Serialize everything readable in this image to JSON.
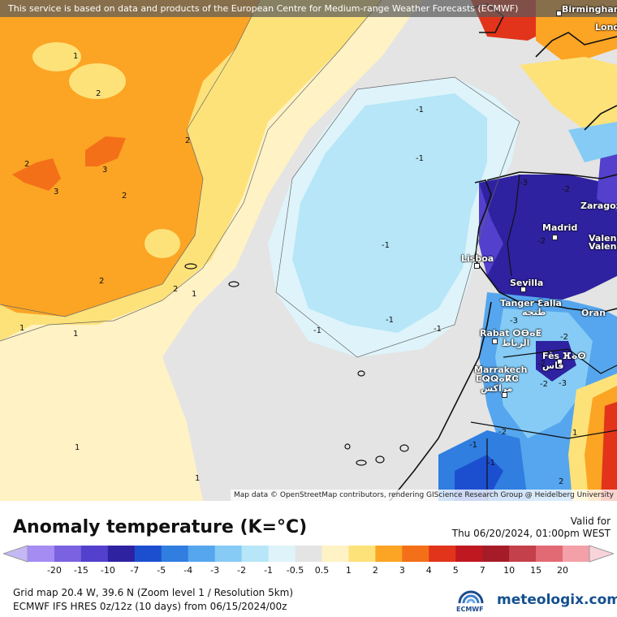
{
  "header": {
    "notice": "This service is based on data and products of the European Centre for Medium-range Weather Forecasts (ECMWF)"
  },
  "credit": "Map data © OpenStreetMap contributors, rendering GIScience Research Group @ Heidelberg University",
  "cities": [
    {
      "name": "Birmingham"
    },
    {
      "name": "Lond"
    },
    {
      "name": "Zaragoza"
    },
    {
      "name": "Madrid"
    },
    {
      "name": "Valenc"
    },
    {
      "name": "Valenc"
    },
    {
      "name": "Lisboa"
    },
    {
      "name": "Sevilla"
    },
    {
      "name": "Tanger Ɛalla"
    },
    {
      "name": "طنجة"
    },
    {
      "name": "Oran"
    },
    {
      "name": "Rabat ⵔⴱⴰⵟ"
    },
    {
      "name": "الرباط"
    },
    {
      "name": "Fès ⴼⴰⵙ"
    },
    {
      "name": "فاس"
    },
    {
      "name": "Marrakech"
    },
    {
      "name": "ⵎⵕⵕⴰⴽⵛ"
    },
    {
      "name": "مراكش"
    }
  ],
  "contour_labels": [
    "1",
    "2",
    "2",
    "2",
    "3",
    "3",
    "2",
    "2",
    "2",
    "1",
    "1",
    "1",
    "1",
    "1",
    "-1",
    "-1",
    "-1",
    "-1",
    "-1",
    "-1",
    "-2",
    "-3",
    "-3",
    "-2",
    "-2",
    "-2",
    "-2",
    "-1",
    "-1",
    "1",
    "2",
    "-3",
    "-3",
    "-2"
  ],
  "legend": {
    "title": "Anomaly temperature (K=°C)",
    "valid_label": "Valid for",
    "valid_time": "Thu 06/20/2024, 01:00pm WEST",
    "levels": [
      "-20",
      "-15",
      "-10",
      "-7",
      "-5",
      "-4",
      "-3",
      "-2",
      "-1",
      "-0.5",
      "0.5",
      "1",
      "2",
      "3",
      "4",
      "5",
      "7",
      "10",
      "15",
      "20"
    ],
    "colors": [
      "#a58cf2",
      "#7a62e0",
      "#5340cc",
      "#2e22a0",
      "#1c4fd0",
      "#2f7ee0",
      "#55a6ee",
      "#85cbf5",
      "#b6e6f7",
      "#def4fa",
      "#e4e4e4",
      "#fff2c4",
      "#fde27a",
      "#fca424",
      "#f37018",
      "#e2341a",
      "#c01820",
      "#a51c28",
      "#c4404a",
      "#e26a74",
      "#f4a0a8"
    ],
    "min_color": "#c4b8f4",
    "max_color": "#f8d4da"
  },
  "info": {
    "line1": "Grid map 20.4 W, 39.6 N (Zoom level 1 / Resolution 5km)",
    "line2": "ECMWF IFS HRES 0z/12z (10 days) from 06/15/2024/00z"
  },
  "logos": {
    "ecmwf": "ECMWF",
    "brand": "meteologix.com"
  }
}
